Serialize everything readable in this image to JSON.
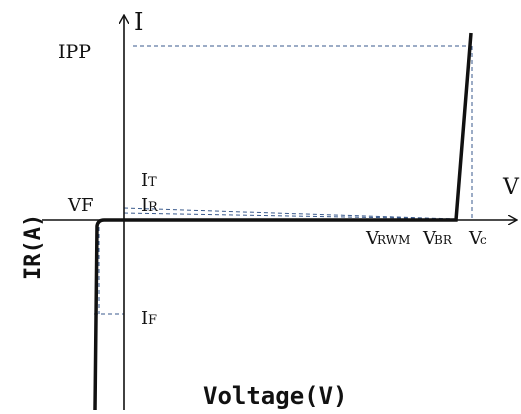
{
  "diagram": {
    "labels": {
      "y_axis": "I",
      "x_axis": "V",
      "ipp": "IPP",
      "it_main": "I",
      "it_sub": "T",
      "ir_main": "I",
      "ir_sub": "R",
      "vf": "VF",
      "vrwm_main": "V",
      "vrwm_sub": "RWM",
      "vbr_main": "V",
      "vbr_sub": "BR",
      "vc_main": "V",
      "vc_sub": "c",
      "if_main": "I",
      "if_sub": "F",
      "left_axis_label": "IR(A)",
      "bottom_axis_label": "Voltage(V)"
    }
  }
}
